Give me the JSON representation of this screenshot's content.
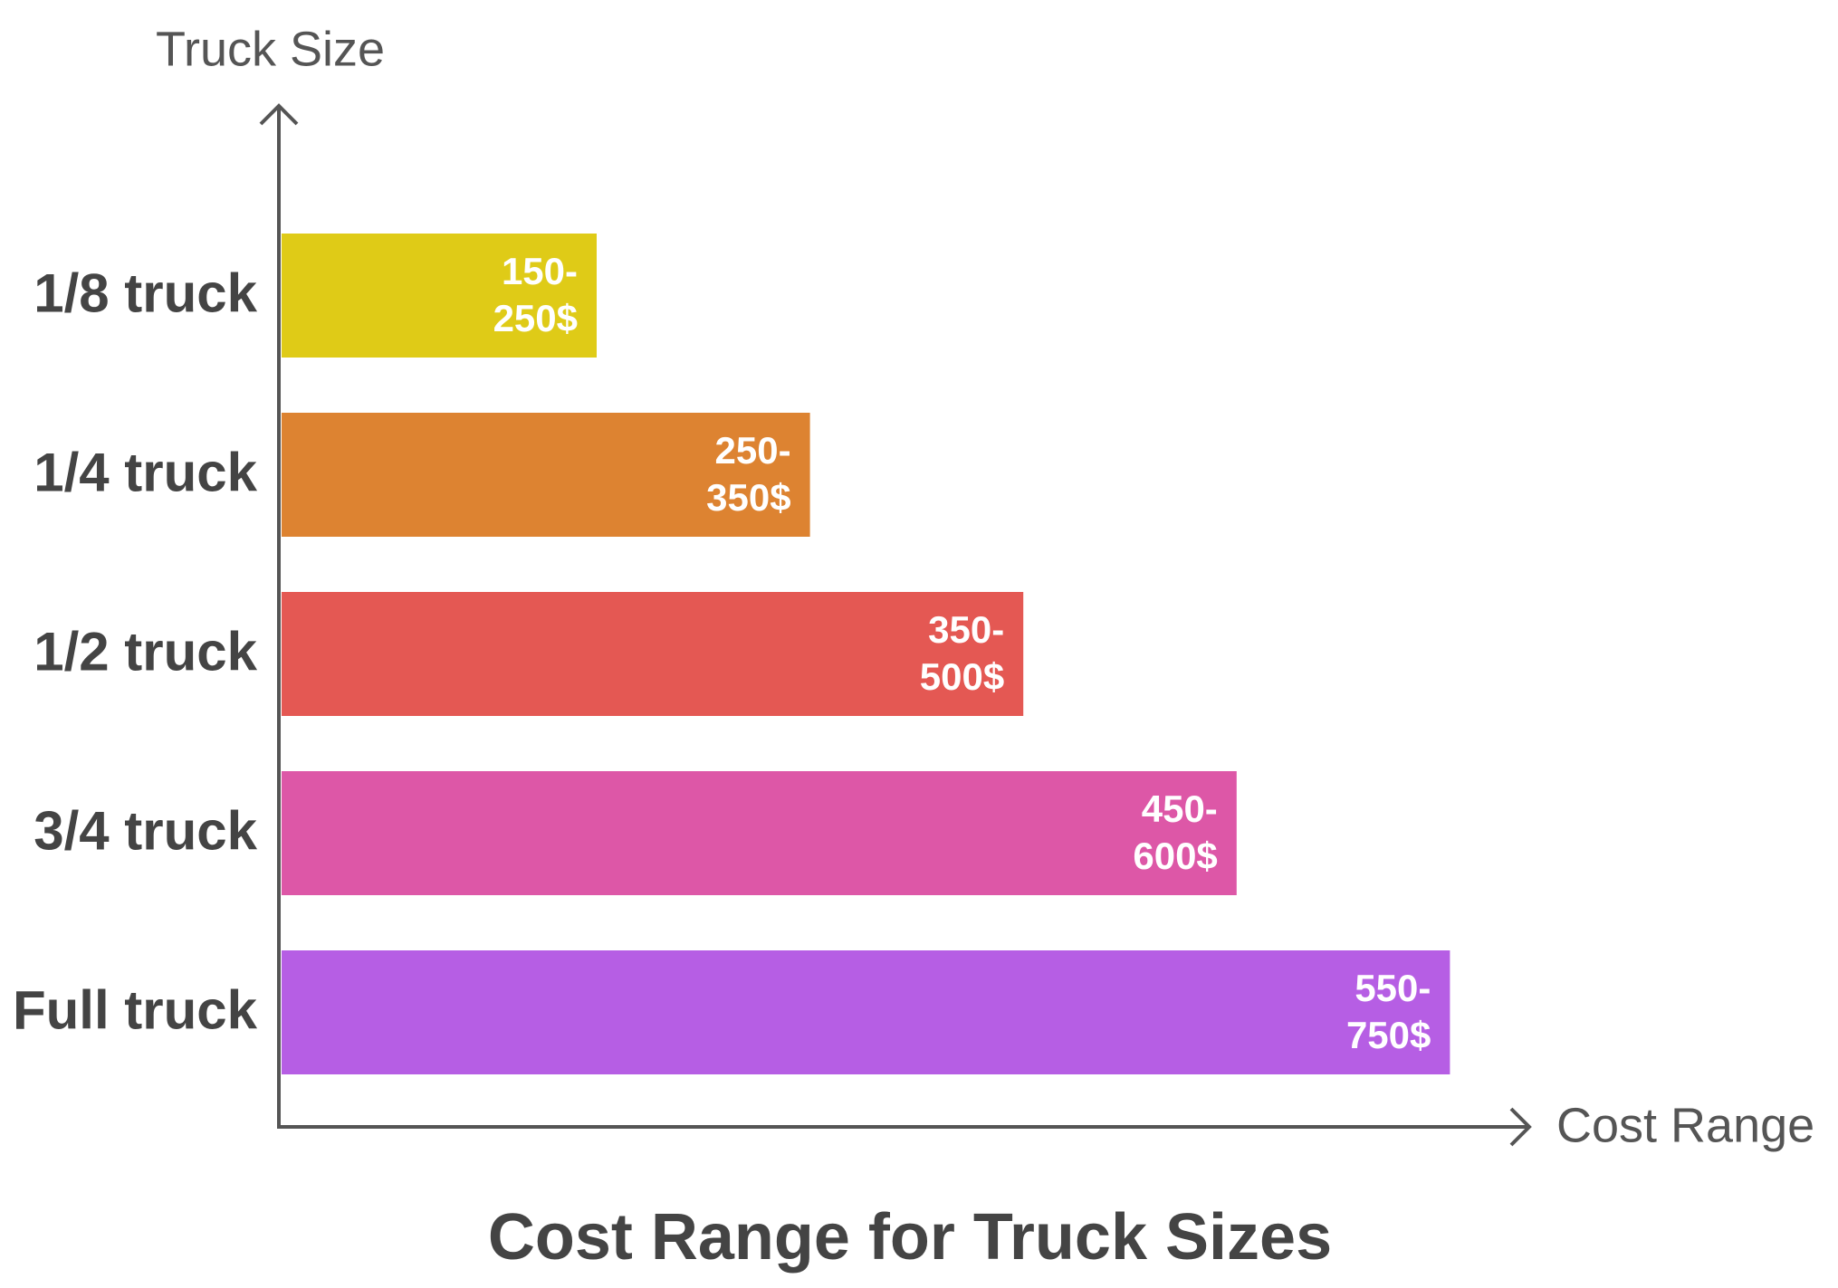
{
  "chart_data": {
    "type": "bar",
    "orientation": "horizontal",
    "title": "Cost Range for Truck Sizes",
    "y_label": "Truck Size",
    "x_label": "Cost Range",
    "categories": [
      "1/8 truck",
      "1/4 truck",
      "1/2 truck",
      "3/4 truck",
      "Full truck"
    ],
    "low": [
      150,
      250,
      350,
      450,
      550
    ],
    "high": [
      250,
      350,
      500,
      600,
      750
    ],
    "value_labels": [
      "150-250$",
      "250-350$",
      "350-500$",
      "450-600$",
      "550-750$"
    ],
    "colors": [
      "#dfcb17",
      "#dd8331",
      "#e45853",
      "#dd57a7",
      "#b65ee4"
    ]
  }
}
